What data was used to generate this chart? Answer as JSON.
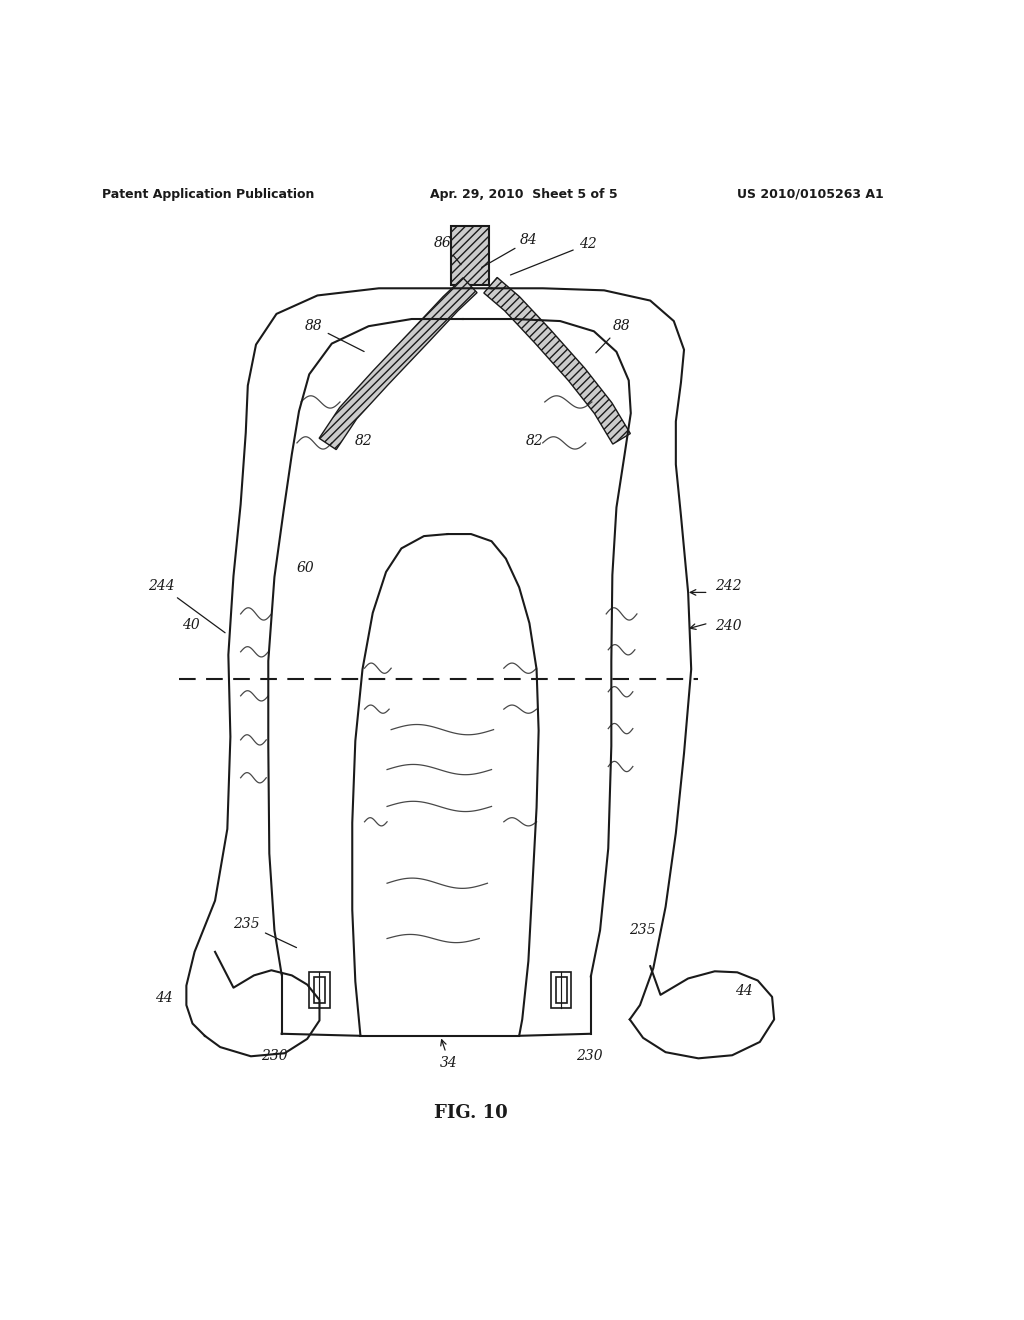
{
  "bg_color": "#ffffff",
  "line_color": "#1a1a1a",
  "header_left": "Patent Application Publication",
  "header_mid": "Apr. 29, 2010  Sheet 5 of 5",
  "header_right": "US 2010/0105263 A1",
  "fig_label": "FIG. 10",
  "label_fs": 10
}
